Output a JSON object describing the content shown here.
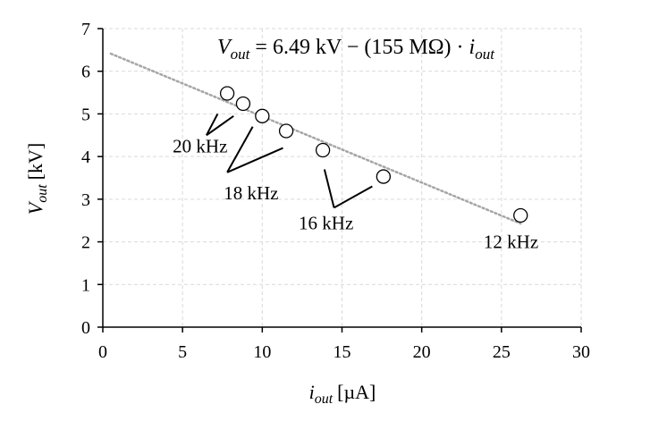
{
  "chart_data": {
    "type": "scatter",
    "xlabel": {
      "main": "i",
      "sub": "out",
      "unit": "[µA]"
    },
    "ylabel": {
      "main": "V",
      "sub": "out",
      "unit": "[kV]"
    },
    "xlim": [
      0,
      30
    ],
    "ylim": [
      0,
      7
    ],
    "x_ticks": [
      0,
      5,
      10,
      15,
      20,
      25,
      30
    ],
    "y_ticks": [
      0,
      1,
      2,
      3,
      4,
      5,
      6,
      7
    ],
    "grid": true,
    "points": [
      {
        "x": 7.8,
        "y": 5.48
      },
      {
        "x": 8.8,
        "y": 5.24
      },
      {
        "x": 10.0,
        "y": 4.95
      },
      {
        "x": 11.5,
        "y": 4.6
      },
      {
        "x": 13.8,
        "y": 4.15
      },
      {
        "x": 17.6,
        "y": 3.53
      },
      {
        "x": 26.2,
        "y": 2.62
      }
    ],
    "trendline": {
      "intercept": 6.49,
      "slope": -0.155,
      "x_range": [
        0.5,
        26.2
      ]
    },
    "equation": {
      "lhs_main": "V",
      "lhs_sub": "out",
      "rhs": " = 6.49 kV − (155 MΩ) · ",
      "rhs_var_main": "i",
      "rhs_var_sub": "out"
    },
    "annotations": [
      {
        "label": "20 kHz",
        "label_x": 6.1,
        "label_y": 4.1,
        "apex_x": 6.5,
        "apex_y": 4.5,
        "targets": [
          [
            7.2,
            5.0
          ],
          [
            8.2,
            4.95
          ]
        ]
      },
      {
        "label": "18 kHz",
        "label_x": 9.3,
        "label_y": 3.0,
        "apex_x": 7.8,
        "apex_y": 3.63,
        "targets": [
          [
            9.4,
            4.7
          ],
          [
            11.3,
            4.2
          ]
        ]
      },
      {
        "label": "16 kHz",
        "label_x": 14.0,
        "label_y": 2.3,
        "apex_x": 14.5,
        "apex_y": 2.8,
        "targets": [
          [
            13.9,
            3.7
          ],
          [
            16.9,
            3.3
          ]
        ]
      },
      {
        "label": "12 kHz",
        "label_x": 25.6,
        "label_y": 1.85,
        "apex_x": null,
        "apex_y": null,
        "targets": []
      }
    ]
  }
}
